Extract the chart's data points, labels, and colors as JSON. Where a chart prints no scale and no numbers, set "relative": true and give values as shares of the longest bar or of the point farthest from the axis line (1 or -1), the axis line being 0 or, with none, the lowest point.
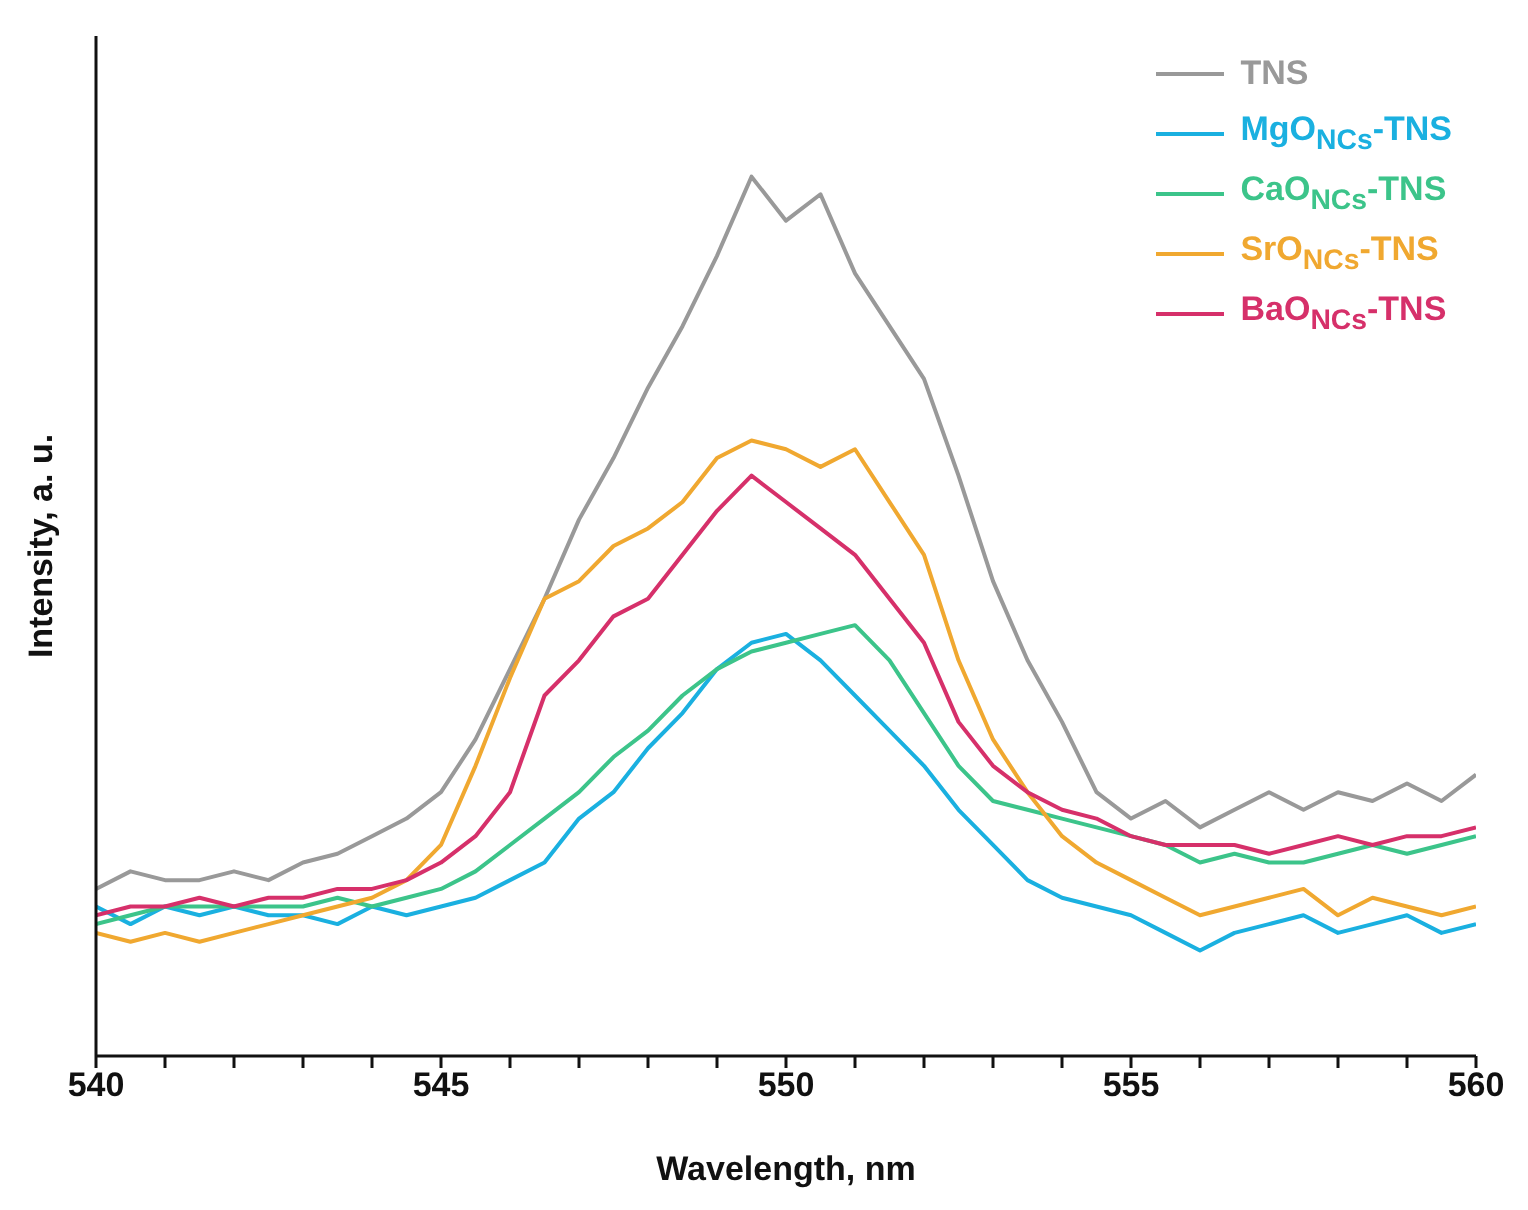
{
  "chart_data": {
    "type": "line",
    "relative": true,
    "xlabel": "Wavelength, nm",
    "ylabel": "Intensity, a. u.",
    "legend": "top right",
    "grid": false,
    "marker": "none",
    "line_style": "solid",
    "xlim": [
      540,
      560
    ],
    "xticks": [
      540,
      {
        "value": 541,
        "label": null
      },
      {
        "value": 542,
        "label": null
      },
      {
        "value": 543,
        "label": null
      },
      {
        "value": 544,
        "label": null
      },
      545,
      {
        "value": 546,
        "label": null
      },
      {
        "value": 547,
        "label": null
      },
      {
        "value": 548,
        "label": null
      },
      {
        "value": 549,
        "label": null
      },
      550,
      {
        "value": 551,
        "label": null
      },
      {
        "value": 552,
        "label": null
      },
      {
        "value": 553,
        "label": null
      },
      {
        "value": 554,
        "label": null
      },
      555,
      {
        "value": 556,
        "label": null
      },
      {
        "value": 557,
        "label": null
      },
      {
        "value": 558,
        "label": null
      },
      {
        "value": 559,
        "label": null
      },
      560
    ],
    "x": [
      540,
      540.5,
      541,
      541.5,
      542,
      542.5,
      543,
      543.5,
      544,
      544.5,
      545,
      545.5,
      546,
      546.5,
      547,
      547.5,
      548,
      548.5,
      549,
      549.5,
      550,
      550.5,
      551,
      551.5,
      552,
      552.5,
      553,
      553.5,
      554,
      554.5,
      555,
      555.5,
      556,
      556.5,
      557,
      557.5,
      558,
      558.5,
      559,
      559.5,
      560
    ],
    "series": [
      {
        "name": "TNS",
        "color": "#999999",
        "values": [
          0.19,
          0.21,
          0.2,
          0.2,
          0.21,
          0.2,
          0.22,
          0.23,
          0.25,
          0.27,
          0.3,
          0.36,
          0.44,
          0.52,
          0.61,
          0.68,
          0.76,
          0.83,
          0.91,
          1.0,
          0.95,
          0.98,
          0.89,
          0.83,
          0.77,
          0.66,
          0.54,
          0.45,
          0.38,
          0.3,
          0.27,
          0.29,
          0.26,
          0.28,
          0.3,
          0.28,
          0.3,
          0.29,
          0.31,
          0.29,
          0.32
        ]
      },
      {
        "name": "MgO$_{NCs}$-TNS",
        "color": "#1ab0e0",
        "values": [
          0.17,
          0.15,
          0.17,
          0.16,
          0.17,
          0.16,
          0.16,
          0.15,
          0.17,
          0.16,
          0.17,
          0.18,
          0.2,
          0.22,
          0.27,
          0.3,
          0.35,
          0.39,
          0.44,
          0.47,
          0.48,
          0.45,
          0.41,
          0.37,
          0.33,
          0.28,
          0.24,
          0.2,
          0.18,
          0.17,
          0.16,
          0.14,
          0.12,
          0.14,
          0.15,
          0.16,
          0.14,
          0.15,
          0.16,
          0.14,
          0.15
        ]
      },
      {
        "name": "CaO$_{NCs}$-TNS",
        "color": "#3cc48a",
        "values": [
          0.15,
          0.16,
          0.17,
          0.17,
          0.17,
          0.17,
          0.17,
          0.18,
          0.17,
          0.18,
          0.19,
          0.21,
          0.24,
          0.27,
          0.3,
          0.34,
          0.37,
          0.41,
          0.44,
          0.46,
          0.47,
          0.48,
          0.49,
          0.45,
          0.39,
          0.33,
          0.29,
          0.28,
          0.27,
          0.26,
          0.25,
          0.24,
          0.22,
          0.23,
          0.22,
          0.22,
          0.23,
          0.24,
          0.23,
          0.24,
          0.25
        ]
      },
      {
        "name": "SrO$_{NCs}$-TNS",
        "color": "#f0a830",
        "values": [
          0.14,
          0.13,
          0.14,
          0.13,
          0.14,
          0.15,
          0.16,
          0.17,
          0.18,
          0.2,
          0.24,
          0.33,
          0.43,
          0.52,
          0.54,
          0.58,
          0.6,
          0.63,
          0.68,
          0.7,
          0.69,
          0.67,
          0.69,
          0.63,
          0.57,
          0.45,
          0.36,
          0.3,
          0.25,
          0.22,
          0.2,
          0.18,
          0.16,
          0.17,
          0.18,
          0.19,
          0.16,
          0.18,
          0.17,
          0.16,
          0.17
        ]
      },
      {
        "name": "BaO$_{NCs}$-TNS",
        "color": "#d6306a",
        "values": [
          0.16,
          0.17,
          0.17,
          0.18,
          0.17,
          0.18,
          0.18,
          0.19,
          0.19,
          0.2,
          0.22,
          0.25,
          0.3,
          0.41,
          0.45,
          0.5,
          0.52,
          0.57,
          0.62,
          0.66,
          0.63,
          0.6,
          0.57,
          0.52,
          0.47,
          0.38,
          0.33,
          0.3,
          0.28,
          0.27,
          0.25,
          0.24,
          0.24,
          0.24,
          0.23,
          0.24,
          0.25,
          0.24,
          0.25,
          0.25,
          0.26
        ]
      }
    ]
  }
}
